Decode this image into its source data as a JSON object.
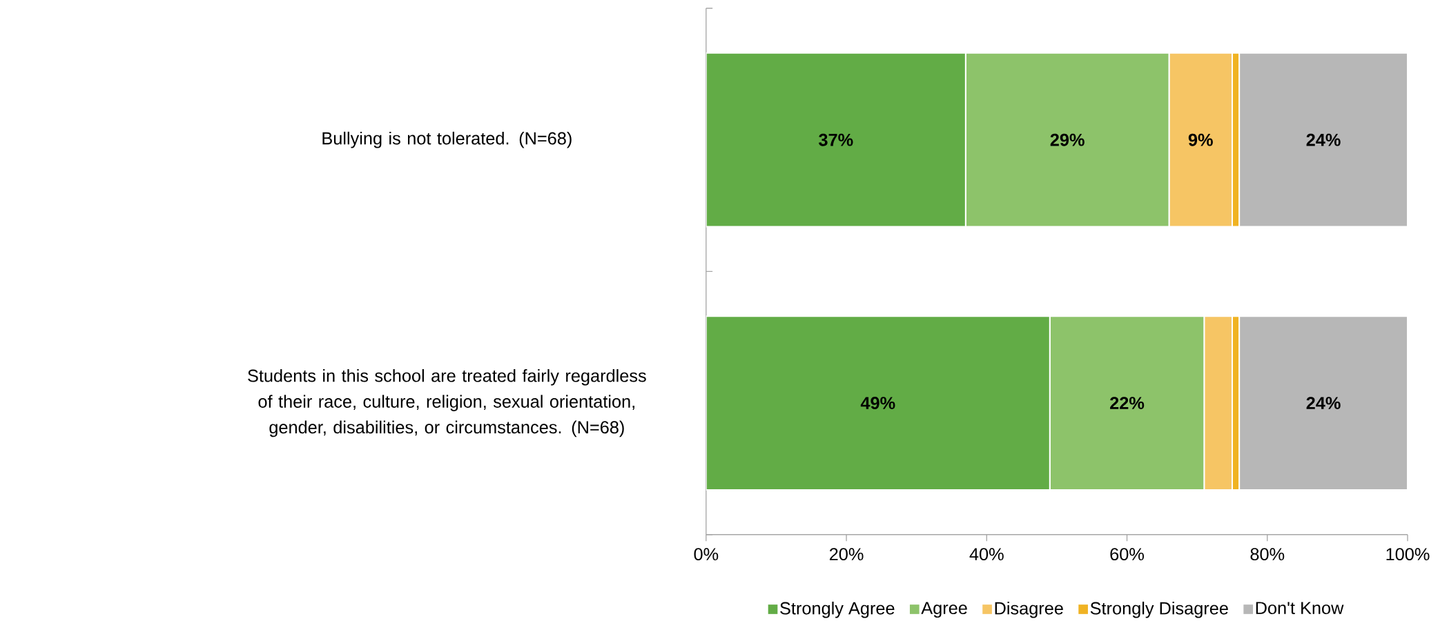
{
  "chart_data": {
    "type": "bar",
    "orientation": "horizontal",
    "stacked": true,
    "legend": "bottom",
    "categories": [
      "Bullying is not tolerated. (N=68)",
      "Students in this school are treated fairly regardless of their race, culture, religion, sexual orientation, gender, disabilities, or circumstances. (N=68)"
    ],
    "series": [
      {
        "name": "Strongly Agree",
        "color": "#62ac46",
        "values": [
          37,
          49
        ],
        "value_labels": [
          "37%",
          "49%"
        ]
      },
      {
        "name": "Agree",
        "color": "#8dc36a",
        "values": [
          29,
          22
        ],
        "value_labels": [
          "29%",
          "22%"
        ]
      },
      {
        "name": "Disagree",
        "color": "#f6c564",
        "values": [
          9,
          4
        ],
        "value_labels": [
          "9%",
          null
        ]
      },
      {
        "name": "Strongly Disagree",
        "color": "#f0b323",
        "values": [
          1,
          1
        ],
        "value_labels": [
          null,
          null
        ]
      },
      {
        "name": "Don't Know",
        "color": "#b7b7b7",
        "values": [
          24,
          24
        ],
        "value_labels": [
          "24%",
          "24%"
        ]
      }
    ],
    "xlim": [
      0,
      100
    ],
    "xticks": [
      {
        "value": 0,
        "label": "0%"
      },
      {
        "value": 20,
        "label": "20%"
      },
      {
        "value": 40,
        "label": "40%"
      },
      {
        "value": 60,
        "label": "60%"
      },
      {
        "value": 80,
        "label": "80%"
      },
      {
        "value": 100,
        "label": "100%"
      }
    ]
  }
}
